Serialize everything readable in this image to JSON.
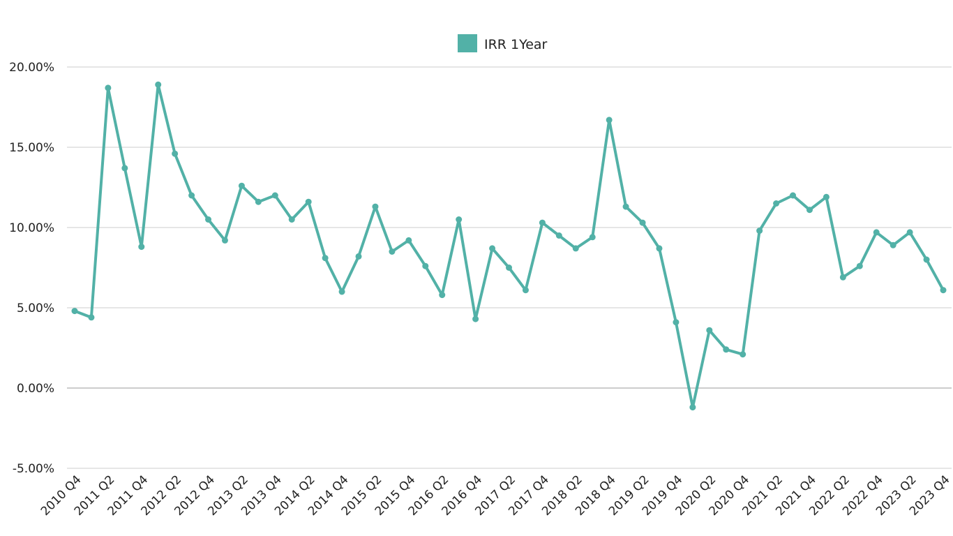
{
  "colors": {
    "series": "#52b1a7",
    "grid": "#cccccc",
    "zero_line": "#999999",
    "text": "#222222"
  },
  "legend": {
    "label": "IRR 1Year",
    "position": "top-center"
  },
  "chart_data": {
    "type": "line",
    "title": "",
    "xlabel": "",
    "ylabel": "",
    "ylim": [
      -5,
      20
    ],
    "yticks": [
      "20.00%",
      "15.00%",
      "10.00%",
      "5.00%",
      "0.00%",
      "-5.00%"
    ],
    "ytick_values": [
      20,
      15,
      10,
      5,
      0,
      -5
    ],
    "grid": true,
    "legend_position": "top-center",
    "xtick_labels": [
      "2010 Q4",
      "2011 Q2",
      "2011 Q4",
      "2012 Q2",
      "2012 Q4",
      "2013 Q2",
      "2013 Q4",
      "2014 Q2",
      "2014 Q4",
      "2015 Q2",
      "2015 Q4",
      "2016 Q2",
      "2016 Q4",
      "2017 Q2",
      "2017 Q4",
      "2018 Q2",
      "2018 Q4",
      "2019 Q2",
      "2019 Q4",
      "2020 Q2",
      "2020 Q4",
      "2021 Q2",
      "2021 Q4",
      "2022 Q2",
      "2022 Q4",
      "2023 Q2",
      "2023 Q4"
    ],
    "categories": [
      "2010 Q4",
      "2011 Q1",
      "2011 Q2",
      "2011 Q3",
      "2011 Q4",
      "2012 Q1",
      "2012 Q2",
      "2012 Q3",
      "2012 Q4",
      "2013 Q1",
      "2013 Q2",
      "2013 Q3",
      "2013 Q4",
      "2014 Q1",
      "2014 Q2",
      "2014 Q3",
      "2014 Q4",
      "2015 Q1",
      "2015 Q2",
      "2015 Q3",
      "2015 Q4",
      "2016 Q1",
      "2016 Q2",
      "2016 Q3",
      "2016 Q4",
      "2017 Q1",
      "2017 Q2",
      "2017 Q3",
      "2017 Q4",
      "2018 Q1",
      "2018 Q2",
      "2018 Q3",
      "2018 Q4",
      "2019 Q1",
      "2019 Q2",
      "2019 Q3",
      "2019 Q4",
      "2020 Q1",
      "2020 Q2",
      "2020 Q3",
      "2020 Q4",
      "2021 Q1",
      "2021 Q2",
      "2021 Q3",
      "2021 Q4",
      "2022 Q1",
      "2022 Q2",
      "2022 Q3",
      "2022 Q4",
      "2023 Q1",
      "2023 Q2",
      "2023 Q3",
      "2023 Q4"
    ],
    "series": [
      {
        "name": "IRR 1Year",
        "values": [
          4.8,
          4.4,
          18.7,
          13.7,
          8.8,
          18.9,
          14.6,
          12.0,
          10.5,
          9.2,
          12.6,
          11.6,
          12.0,
          10.5,
          11.6,
          8.1,
          6.0,
          8.2,
          11.3,
          8.5,
          9.2,
          7.6,
          5.8,
          10.5,
          4.3,
          8.7,
          7.5,
          6.1,
          10.3,
          9.5,
          8.7,
          9.4,
          16.7,
          11.3,
          10.3,
          8.7,
          4.1,
          -1.2,
          3.6,
          2.4,
          2.1,
          9.8,
          11.5,
          12.0,
          11.1,
          11.9,
          6.9,
          7.6,
          9.7,
          8.9,
          9.7,
          8.0,
          6.1
        ]
      }
    ]
  }
}
